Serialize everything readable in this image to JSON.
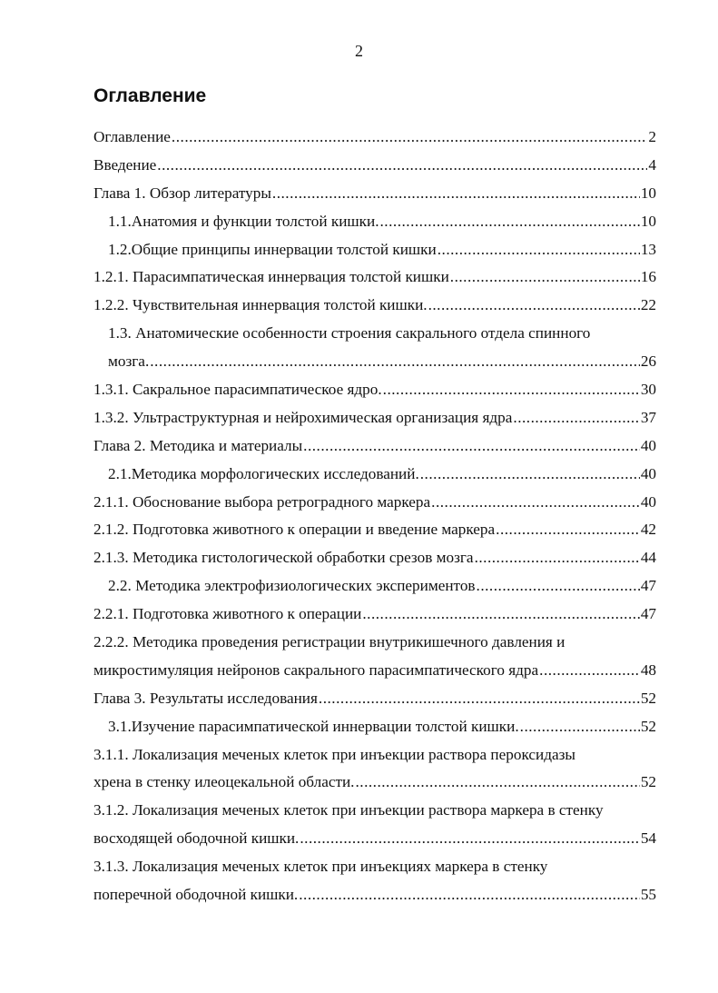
{
  "page_number": "2",
  "heading": "Оглавление",
  "toc": [
    {
      "num": "",
      "title": "Оглавление",
      "page": "2",
      "indent": false,
      "tab": false
    },
    {
      "num": "",
      "title": "Введение",
      "page": "4",
      "indent": false,
      "tab": false
    },
    {
      "num": "",
      "title": "Глава 1. Обзор литературы",
      "page": "10",
      "indent": false,
      "tab": false
    },
    {
      "num": "1.1.",
      "title": "Анатомия и функции толстой кишки.",
      "page": "10",
      "indent": true,
      "tab": true
    },
    {
      "num": "1.2.",
      "title": "Общие принципы иннервации толстой кишки",
      "page": "13",
      "indent": true,
      "tab": true
    },
    {
      "num": "",
      "title": "1.2.1. Парасимпатическая иннервация толстой кишки",
      "page": "16",
      "indent": false,
      "tab": false
    },
    {
      "num": "",
      "title": "1.2.2. Чувствительная иннервация толстой кишки.",
      "page": "22",
      "indent": false,
      "tab": false
    },
    {
      "num": "",
      "title": "1.3. Анатомические особенности строения сакрального отдела спинного",
      "page": "",
      "indent": true,
      "tab": false
    },
    {
      "num": "",
      "title": "мозга.",
      "page": "26",
      "indent": true,
      "tab": false
    },
    {
      "num": "",
      "title": "1.3.1. Сакральное парасимпатическое ядро.",
      "page": "30",
      "indent": false,
      "tab": false
    },
    {
      "num": "",
      "title": "1.3.2. Ультраструктурная и нейрохимическая организация ядра",
      "page": "37",
      "indent": false,
      "tab": false
    },
    {
      "num": "",
      "title": "Глава 2. Методика и материалы",
      "page": "40",
      "indent": false,
      "tab": false
    },
    {
      "num": "",
      "title": "2.1.Методика морфологических исследований.",
      "page": "40",
      "indent": true,
      "tab": false
    },
    {
      "num": "",
      "title": "2.1.1. Обоснование выбора ретроградного маркера",
      "page": "40",
      "indent": false,
      "tab": false
    },
    {
      "num": "",
      "title": "2.1.2. Подготовка животного к операции и введение маркера",
      "page": "42",
      "indent": false,
      "tab": false
    },
    {
      "num": "",
      "title": "2.1.3. Методика гистологической обработки срезов мозга",
      "page": "44",
      "indent": false,
      "tab": false
    },
    {
      "num": "",
      "title": "2.2. Методика электрофизиологических экспериментов",
      "page": "47",
      "indent": true,
      "tab": false
    },
    {
      "num": "",
      "title": "2.2.1. Подготовка животного к операции",
      "page": "47",
      "indent": false,
      "tab": false
    },
    {
      "num": "",
      "title": "2.2.2. Методика проведения регистрации внутрикишечного давления и",
      "page": "",
      "indent": false,
      "tab": false
    },
    {
      "num": "",
      "title": "микростимуляция нейронов сакрального парасимпатического ядра",
      "page": "48",
      "indent": false,
      "tab": false
    },
    {
      "num": "",
      "title": "Глава 3. Результаты исследования",
      "page": "52",
      "indent": false,
      "tab": false
    },
    {
      "num": "",
      "title": "3.1.Изучение парасимпатической иннервации толстой кишки.",
      "page": "52",
      "indent": true,
      "tab": false
    },
    {
      "num": "",
      "title": "3.1.1. Локализация меченых клеток при инъекции раствора пероксидазы",
      "page": "",
      "indent": false,
      "tab": false
    },
    {
      "num": "",
      "title": "хрена в стенку илеоцекальной области.",
      "page": "52",
      "indent": false,
      "tab": false
    },
    {
      "num": "",
      "title": "3.1.2. Локализация меченых клеток при инъекции раствора маркера в стенку",
      "page": "",
      "indent": false,
      "tab": false
    },
    {
      "num": "",
      "title": "восходящей ободочной кишки.",
      "page": "54",
      "indent": false,
      "tab": false
    },
    {
      "num": "",
      "title": "3.1.3. Локализация меченых клеток при инъекциях маркера в стенку",
      "page": "",
      "indent": false,
      "tab": false
    },
    {
      "num": "",
      "title": "поперечной ободочной кишки.",
      "page": "55",
      "indent": false,
      "tab": false
    }
  ]
}
